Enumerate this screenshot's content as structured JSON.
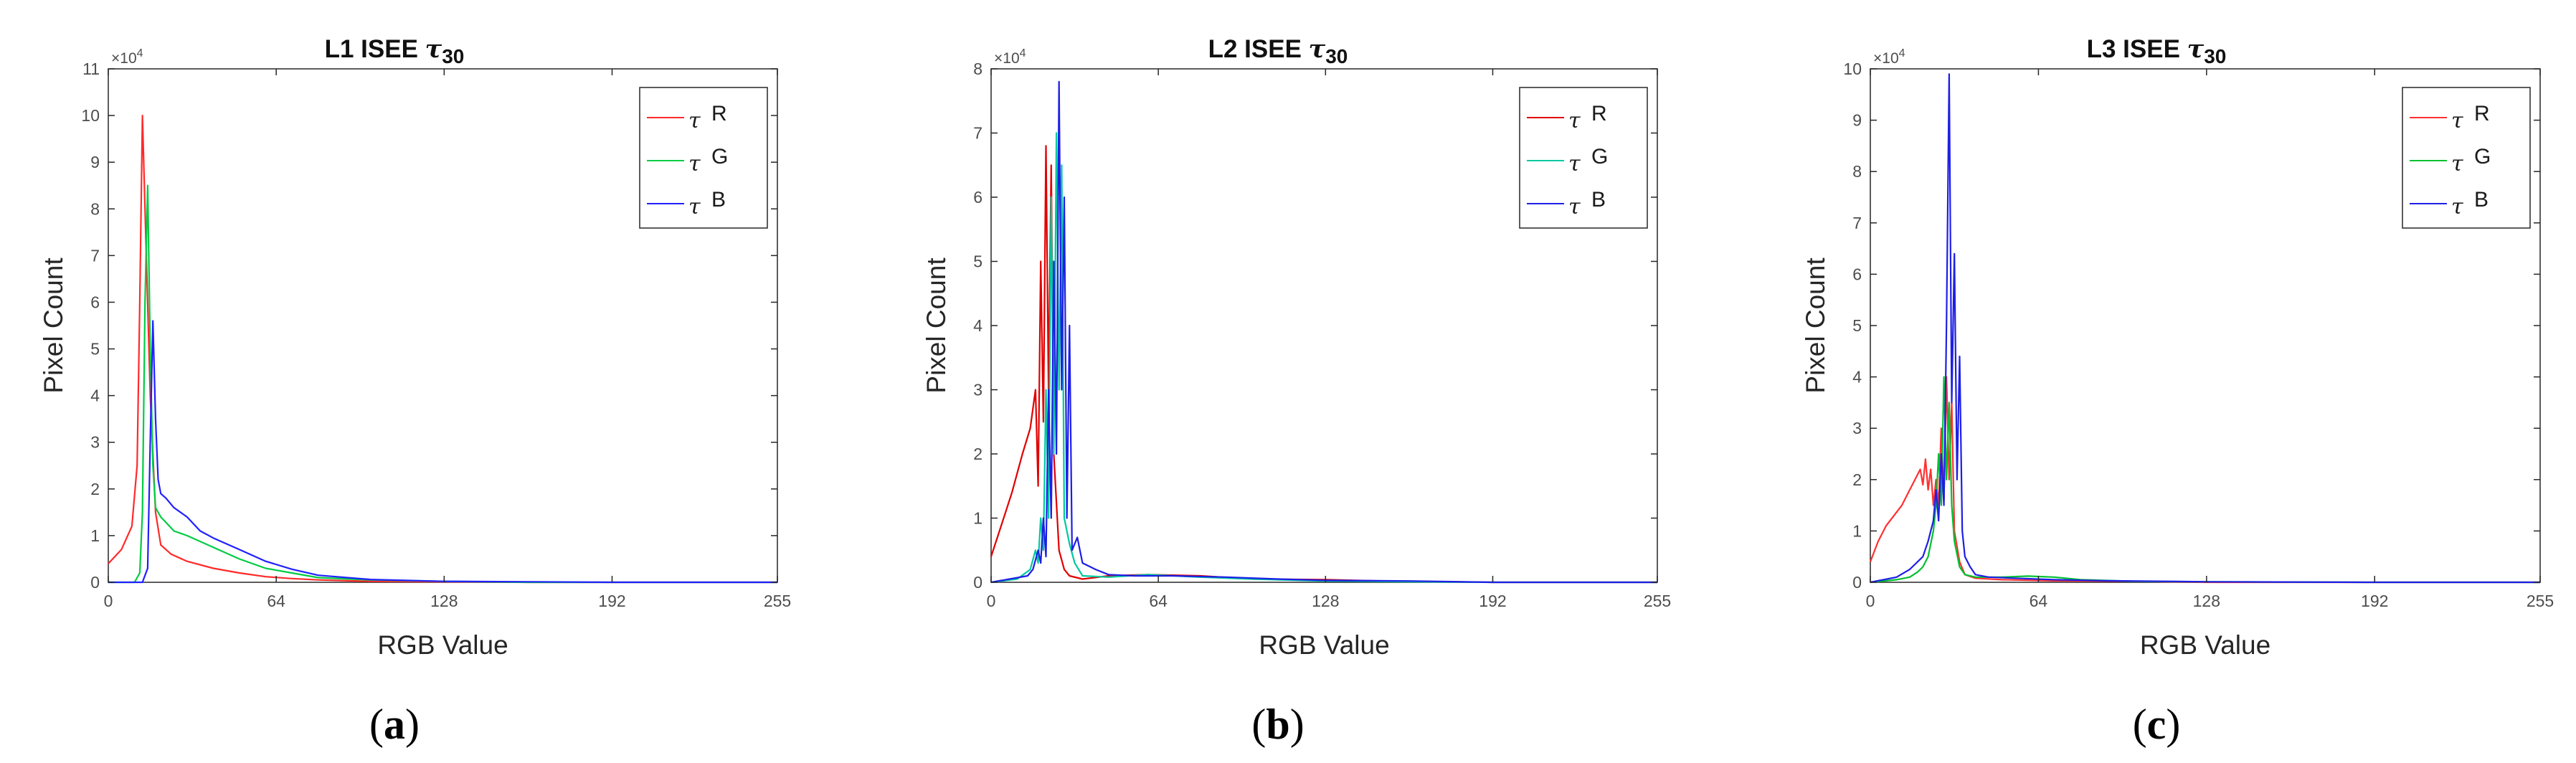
{
  "figure": {
    "captions": [
      "(a)",
      "(b)",
      "(c)"
    ]
  },
  "colors": {
    "R": "#ff2a2a",
    "G": "#00cc44",
    "B": "#2020ff",
    "axis": "#262626"
  },
  "chart_data": [
    {
      "type": "line",
      "title": "L1 ISEE τ30",
      "title_text": "L1 ISEE",
      "title_tau": "τ",
      "title_sub": "30",
      "xlabel": "RGB Value",
      "ylabel": "Pixel Count",
      "y_exponent": "×10",
      "y_exponent_power": "4",
      "xlim": [
        0,
        255
      ],
      "ylim": [
        0,
        11
      ],
      "xticks": [
        0,
        64,
        128,
        192,
        255
      ],
      "yticks": [
        0,
        1,
        2,
        3,
        4,
        5,
        6,
        7,
        8,
        9,
        10,
        11
      ],
      "legend_position": "top-right",
      "series": [
        {
          "name": "R",
          "legend_tau": "τ",
          "color": "#ff2a2a",
          "x": [
            0,
            5,
            9,
            11,
            12,
            13,
            14,
            16,
            18,
            20,
            24,
            30,
            40,
            50,
            60,
            70,
            80,
            100,
            128,
            160,
            192,
            255
          ],
          "y": [
            0.4,
            0.7,
            1.2,
            2.5,
            6,
            10,
            8,
            4,
            1.5,
            0.8,
            0.6,
            0.45,
            0.3,
            0.2,
            0.12,
            0.08,
            0.05,
            0.02,
            0.01,
            0.0,
            0.0,
            0.0
          ]
        },
        {
          "name": "G",
          "legend_tau": "τ",
          "color": "#00cc44",
          "x": [
            0,
            10,
            12,
            13,
            14,
            15,
            16,
            17,
            18,
            20,
            25,
            30,
            40,
            50,
            60,
            70,
            80,
            100,
            128,
            160,
            192,
            255
          ],
          "y": [
            0,
            0,
            0.2,
            1.5,
            6,
            8.5,
            5,
            2.5,
            1.6,
            1.4,
            1.1,
            1.0,
            0.75,
            0.5,
            0.3,
            0.2,
            0.1,
            0.05,
            0.02,
            0.0,
            0.0,
            0.0
          ]
        },
        {
          "name": "B",
          "legend_tau": "τ",
          "color": "#2020ff",
          "x": [
            0,
            13,
            15,
            16,
            17,
            18,
            19,
            20,
            22,
            25,
            30,
            35,
            40,
            50,
            60,
            70,
            80,
            100,
            128,
            160,
            192,
            255
          ],
          "y": [
            0,
            0,
            0.3,
            3,
            5.6,
            3.5,
            2.2,
            1.9,
            1.8,
            1.6,
            1.4,
            1.1,
            0.95,
            0.7,
            0.45,
            0.28,
            0.15,
            0.06,
            0.02,
            0.01,
            0.0,
            0.0
          ]
        }
      ]
    },
    {
      "type": "line",
      "title": "L2 ISEE τ30",
      "title_text": "L2 ISEE",
      "title_tau": "τ",
      "title_sub": "30",
      "xlabel": "RGB Value",
      "ylabel": "Pixel Count",
      "y_exponent": "×10",
      "y_exponent_power": "4",
      "xlim": [
        0,
        255
      ],
      "ylim": [
        0,
        8
      ],
      "xticks": [
        0,
        64,
        128,
        192,
        255
      ],
      "yticks": [
        0,
        1,
        2,
        3,
        4,
        5,
        6,
        7,
        8
      ],
      "legend_position": "top-right",
      "series": [
        {
          "name": "R",
          "legend_tau": "τ",
          "color": "#e00000",
          "x": [
            0,
            4,
            8,
            12,
            15,
            17,
            18,
            19,
            20,
            21,
            22,
            23,
            24,
            26,
            28,
            30,
            35,
            45,
            60,
            80,
            100,
            128,
            150,
            192,
            255
          ],
          "y": [
            0.4,
            0.9,
            1.4,
            2.0,
            2.4,
            3.0,
            1.5,
            5.0,
            2.5,
            6.8,
            3.0,
            6.5,
            2.0,
            0.5,
            0.2,
            0.1,
            0.05,
            0.1,
            0.12,
            0.1,
            0.05,
            0.04,
            0.02,
            0.0,
            0.0
          ]
        },
        {
          "name": "G",
          "legend_tau": "τ",
          "color": "#00c8a0",
          "x": [
            0,
            10,
            15,
            17,
            18,
            19,
            20,
            21,
            22,
            23,
            24,
            25,
            26,
            27,
            28,
            30,
            32,
            35,
            45,
            60,
            80,
            100,
            128,
            160,
            192,
            255
          ],
          "y": [
            0,
            0.05,
            0.2,
            0.5,
            0.3,
            1.0,
            0.5,
            3.0,
            1.0,
            6.0,
            2.0,
            7.0,
            3.0,
            6.5,
            1.0,
            0.6,
            0.3,
            0.1,
            0.08,
            0.12,
            0.08,
            0.05,
            0.02,
            0.01,
            0.0,
            0.0
          ]
        },
        {
          "name": "B",
          "legend_tau": "τ",
          "color": "#1e1ee6",
          "x": [
            0,
            14,
            16,
            18,
            19,
            20,
            21,
            22,
            23,
            24,
            25,
            26,
            27,
            28,
            29,
            30,
            31,
            33,
            35,
            40,
            45,
            55,
            70,
            90,
            110,
            128,
            160,
            192,
            255
          ],
          "y": [
            0,
            0.1,
            0.2,
            0.5,
            0.3,
            1.0,
            0.4,
            3.0,
            1.0,
            5.0,
            2.0,
            7.8,
            3.0,
            6.0,
            1.0,
            4.0,
            0.5,
            0.7,
            0.3,
            0.2,
            0.12,
            0.1,
            0.1,
            0.08,
            0.05,
            0.03,
            0.02,
            0.0,
            0.0
          ]
        }
      ]
    },
    {
      "type": "line",
      "title": "L3 ISEE τ30",
      "title_text": "L3 ISEE",
      "title_tau": "τ",
      "title_sub": "30",
      "xlabel": "RGB Value",
      "ylabel": "Pixel Count",
      "y_exponent": "×10",
      "y_exponent_power": "4",
      "xlim": [
        0,
        255
      ],
      "ylim": [
        0,
        10
      ],
      "xticks": [
        0,
        64,
        128,
        192,
        255
      ],
      "yticks": [
        0,
        1,
        2,
        3,
        4,
        5,
        6,
        7,
        8,
        9,
        10
      ],
      "legend_position": "top-right",
      "series": [
        {
          "name": "R",
          "legend_tau": "τ",
          "color": "#ff3030",
          "x": [
            0,
            3,
            6,
            9,
            12,
            15,
            17,
            19,
            20,
            21,
            22,
            23,
            24,
            25,
            26,
            27,
            28,
            29,
            30,
            31,
            32,
            34,
            36,
            40,
            50,
            70,
            100,
            128,
            192,
            255
          ],
          "y": [
            0.4,
            0.8,
            1.1,
            1.3,
            1.5,
            1.8,
            2.0,
            2.2,
            1.9,
            2.4,
            1.8,
            2.2,
            1.5,
            2.0,
            1.5,
            3.0,
            1.6,
            4.0,
            2.0,
            3.5,
            1.0,
            0.4,
            0.15,
            0.08,
            0.05,
            0.03,
            0.02,
            0.0,
            0.0,
            0.0
          ]
        },
        {
          "name": "G",
          "legend_tau": "τ",
          "color": "#00c030",
          "x": [
            0,
            10,
            15,
            18,
            20,
            22,
            24,
            25,
            26,
            27,
            28,
            29,
            30,
            31,
            32,
            34,
            36,
            40,
            50,
            60,
            70,
            80,
            100,
            128,
            192,
            255
          ],
          "y": [
            0,
            0.05,
            0.1,
            0.2,
            0.3,
            0.5,
            1.0,
            1.5,
            2.5,
            1.5,
            4.0,
            2.0,
            3.5,
            1.5,
            0.8,
            0.3,
            0.15,
            0.1,
            0.1,
            0.12,
            0.1,
            0.05,
            0.02,
            0.01,
            0.0,
            0.0
          ]
        },
        {
          "name": "B",
          "legend_tau": "τ",
          "color": "#1e1ee6",
          "x": [
            0,
            10,
            15,
            20,
            22,
            24,
            25,
            26,
            27,
            28,
            29,
            30,
            31,
            32,
            33,
            34,
            35,
            36,
            38,
            40,
            45,
            55,
            70,
            90,
            110,
            128,
            192,
            255
          ],
          "y": [
            0,
            0.1,
            0.25,
            0.5,
            0.8,
            1.2,
            1.8,
            1.2,
            2.5,
            1.5,
            5.0,
            9.9,
            3.5,
            6.4,
            2.0,
            4.4,
            1.0,
            0.5,
            0.3,
            0.15,
            0.1,
            0.08,
            0.05,
            0.03,
            0.02,
            0.01,
            0.0,
            0.0
          ]
        }
      ]
    }
  ]
}
